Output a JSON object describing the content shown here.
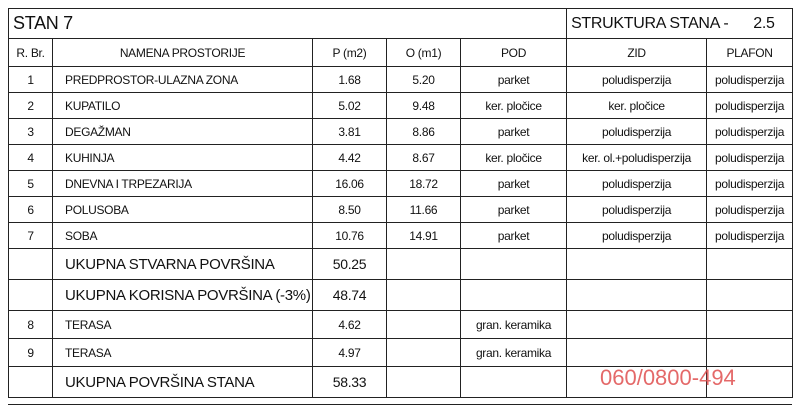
{
  "header": {
    "title": "STAN 7",
    "structure_label": "STRUKTURA STANA -",
    "structure_value": "2.5"
  },
  "columns": [
    "R. Br.",
    "NAMENA PROSTORIJE",
    "P (m2)",
    "O (m1)",
    "POD",
    "ZID",
    "PLAFON"
  ],
  "rows": [
    [
      "1",
      "PREDPROSTOR-ULAZNA ZONA",
      "1.68",
      "5.20",
      "parket",
      "poludisperzija",
      "poludisperzija"
    ],
    [
      "2",
      "KUPATILO",
      "5.02",
      "9.48",
      "ker. pločice",
      "ker. pločice",
      "poludisperzija"
    ],
    [
      "3",
      "DEGAŽMAN",
      "3.81",
      "8.86",
      "parket",
      "poludisperzija",
      "poludisperzija"
    ],
    [
      "4",
      "KUHINJA",
      "4.42",
      "8.67",
      "ker. pločice",
      "ker. ol.+poludisperzija",
      "poludisperzija"
    ],
    [
      "5",
      "DNEVNA I TRPEZARIJA",
      "16.06",
      "18.72",
      "parket",
      "poludisperzija",
      "poludisperzija"
    ],
    [
      "6",
      "POLUSOBA",
      "8.50",
      "11.66",
      "parket",
      "poludisperzija",
      "poludisperzija"
    ],
    [
      "7",
      "SOBA",
      "10.76",
      "14.91",
      "parket",
      "poludisperzija",
      "poludisperzija"
    ],
    [
      "UKUPNA STVARNA POVRŠINA",
      "50.25"
    ],
    [
      "UKUPNA KORISNA POVRŠINA (-3%)",
      "48.74"
    ],
    [
      "8",
      "TERASA",
      "4.62",
      "gran. keramika"
    ],
    [
      "9",
      "TERASA",
      "4.97",
      "gran. keramika"
    ],
    [
      "UKUPNA POVRŠINA STANA",
      "58.33"
    ]
  ],
  "watermark": "060/0800-494"
}
